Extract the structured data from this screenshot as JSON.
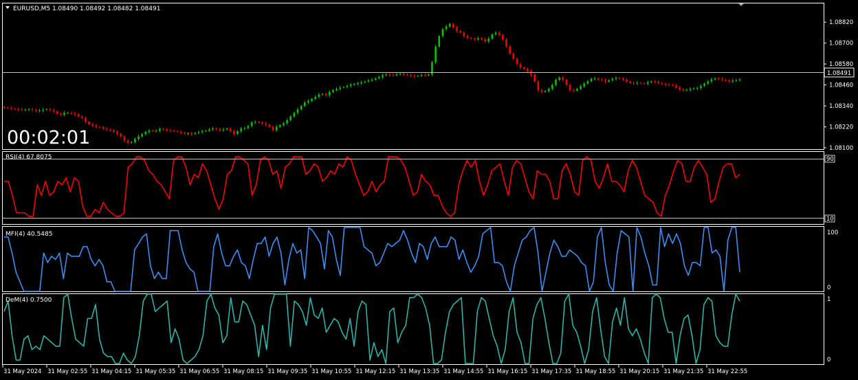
{
  "main": {
    "header": "EURUSD,M5  1.08490 1.08492 1.08482 1.08491",
    "timer": "00:02:01",
    "price_label": "1.08491",
    "price_ticks": [
      "1.08820",
      "1.08700",
      "1.08580",
      "1.08460",
      "1.08340",
      "1.08220",
      "1.08100"
    ]
  },
  "rsi": {
    "label": "RSI(4) 67.8075",
    "levels": [
      "90",
      "10"
    ]
  },
  "mfi": {
    "label": "MFI(4) 40.5485",
    "levels": [
      "100",
      "0"
    ]
  },
  "dem": {
    "label": "DeM(4) 0.7500",
    "levels": [
      "1",
      "0"
    ]
  },
  "time_axis": [
    "31 May 2024",
    "31 May 02:55",
    "31 May 04:15",
    "31 May 05:35",
    "31 May 06:55",
    "31 May 08:15",
    "31 May 09:35",
    "31 May 10:55",
    "31 May 12:15",
    "31 May 13:35",
    "31 May 14:55",
    "31 May 16:15",
    "31 May 17:35",
    "31 May 18:55",
    "31 May 20:15",
    "31 May 21:35",
    "31 May 22:55"
  ],
  "colors": {
    "bull": "#00c800",
    "bear": "#ff0000",
    "rsi": "#ff0000",
    "mfi": "#3a8ef6",
    "dem": "#2ab5a8",
    "grid": "#ffffff",
    "bg": "#000000"
  },
  "chart_data": [
    {
      "type": "candlestick",
      "symbol": "EURUSD",
      "timeframe": "M5",
      "ylim": [
        1.081,
        1.0888
      ],
      "close_series": [
        1.0833,
        1.08328,
        1.08325,
        1.08322,
        1.0832,
        1.08318,
        1.08318,
        1.0832,
        1.08317,
        1.0831,
        1.08315,
        1.08318,
        1.0832,
        1.08315,
        1.08308,
        1.08295,
        1.0829,
        1.083,
        1.083,
        1.08298,
        1.08292,
        1.0828,
        1.0827,
        1.0825,
        1.08235,
        1.08228,
        1.0822,
        1.08218,
        1.0821,
        1.08205,
        1.082,
        1.08192,
        1.0818,
        1.08165,
        1.0814,
        1.08128,
        1.08132,
        1.0815,
        1.08165,
        1.08178,
        1.0819,
        1.08198,
        1.08195,
        1.08198,
        1.08208,
        1.08205,
        1.082,
        1.08198,
        1.08195,
        1.08192,
        1.08185,
        1.0818,
        1.08182,
        1.0818,
        1.08185,
        1.0819,
        1.08195,
        1.08198,
        1.08205,
        1.0821,
        1.08208,
        1.082,
        1.08205,
        1.0821,
        1.08195,
        1.0818,
        1.08195,
        1.0821,
        1.08212,
        1.08225,
        1.08245,
        1.08248,
        1.08245,
        1.08238,
        1.08232,
        1.0822,
        1.082,
        1.0822,
        1.0823,
        1.0824,
        1.08258,
        1.0828,
        1.083,
        1.0832,
        1.0834,
        1.0836,
        1.08368,
        1.0838,
        1.08392,
        1.08405,
        1.08408,
        1.084,
        1.0842,
        1.0843,
        1.08438,
        1.08445,
        1.08448,
        1.08455,
        1.08462,
        1.08465,
        1.0847,
        1.08475,
        1.0848,
        1.08487,
        1.0849,
        1.08498,
        1.08505,
        1.08515,
        1.0852,
        1.08518,
        1.08515,
        1.08522,
        1.08525,
        1.0852,
        1.08518,
        1.08512,
        1.0851,
        1.08512,
        1.08518,
        1.08515,
        1.0852,
        1.0859,
        1.0868,
        1.0874,
        1.0878,
        1.08795,
        1.0881,
        1.0879,
        1.0877,
        1.0876,
        1.0874,
        1.0873,
        1.08725,
        1.08722,
        1.08728,
        1.08722,
        1.0871,
        1.08725,
        1.0875,
        1.0876,
        1.08748,
        1.0872,
        1.0868,
        1.0864,
        1.0861,
        1.0858,
        1.0856,
        1.08552,
        1.0854,
        1.0852,
        1.0848,
        1.0843,
        1.0842,
        1.08425,
        1.08438,
        1.0846,
        1.0849,
        1.08502,
        1.0849,
        1.0846,
        1.0843,
        1.08428,
        1.08438,
        1.08452,
        1.08468,
        1.08482,
        1.08495,
        1.08498,
        1.08492,
        1.08488,
        1.0848,
        1.08487,
        1.08495,
        1.085,
        1.08497,
        1.0849,
        1.0848,
        1.08472,
        1.08468,
        1.08472,
        1.0847,
        1.08468,
        1.08475,
        1.0848,
        1.08478,
        1.08472,
        1.08466,
        1.08462,
        1.0846,
        1.08458,
        1.08445,
        1.08435,
        1.0843,
        1.08432,
        1.08438,
        1.0844,
        1.08442,
        1.08455,
        1.08468,
        1.0848,
        1.08492,
        1.08498,
        1.08494,
        1.0849,
        1.08485,
        1.0848,
        1.08485,
        1.08488,
        1.08491
      ]
    },
    {
      "type": "line",
      "name": "RSI(4) 67.8075",
      "ylim": [
        0,
        100
      ],
      "values": [
        60,
        60,
        40,
        15,
        15,
        15,
        10,
        10,
        55,
        40,
        60,
        40,
        45,
        60,
        55,
        65,
        45,
        65,
        60,
        25,
        10,
        10,
        20,
        15,
        30,
        20,
        15,
        10,
        10,
        15,
        80,
        85,
        95,
        95,
        90,
        75,
        70,
        60,
        55,
        45,
        35,
        90,
        95,
        95,
        80,
        55,
        70,
        65,
        85,
        75,
        55,
        35,
        20,
        35,
        70,
        75,
        95,
        95,
        90,
        85,
        40,
        55,
        90,
        95,
        90,
        70,
        75,
        50,
        80,
        85,
        95,
        95,
        95,
        70,
        75,
        85,
        80,
        60,
        65,
        75,
        70,
        85,
        80,
        95,
        90,
        70,
        55,
        40,
        45,
        60,
        45,
        55,
        60,
        95,
        95,
        95,
        90,
        80,
        60,
        40,
        45,
        70,
        60,
        55,
        40,
        40,
        25,
        15,
        10,
        15,
        55,
        75,
        90,
        80,
        90,
        60,
        40,
        55,
        75,
        80,
        85,
        60,
        40,
        80,
        90,
        85,
        65,
        45,
        35,
        75,
        70,
        70,
        60,
        35,
        35,
        75,
        85,
        70,
        45,
        40,
        90,
        95,
        90,
        60,
        50,
        65,
        85,
        60,
        60,
        55,
        45,
        75,
        90,
        80,
        60,
        40,
        35,
        30,
        15,
        10,
        40,
        55,
        75,
        90,
        85,
        60,
        60,
        80,
        90,
        80,
        70,
        30,
        35,
        60,
        80,
        85,
        85,
        65,
        70
      ]
    },
    {
      "type": "line",
      "name": "MFI(4) 40.5485",
      "ylim": [
        0,
        100
      ],
      "values": [
        85,
        85,
        60,
        30,
        15,
        0,
        0,
        0,
        0,
        0,
        60,
        45,
        55,
        50,
        60,
        20,
        60,
        55,
        55,
        55,
        70,
        70,
        50,
        40,
        50,
        40,
        15,
        15,
        0,
        0,
        0,
        0,
        0,
        65,
        75,
        85,
        90,
        40,
        20,
        30,
        20,
        20,
        95,
        95,
        95,
        65,
        45,
        35,
        30,
        0,
        0,
        0,
        0,
        70,
        90,
        60,
        40,
        40,
        55,
        65,
        45,
        40,
        20,
        50,
        75,
        75,
        85,
        55,
        75,
        85,
        60,
        10,
        50,
        75,
        60,
        65,
        20,
        100,
        95,
        85,
        75,
        35,
        95,
        85,
        50,
        25,
        100,
        100,
        100,
        100,
        100,
        70,
        65,
        60,
        40,
        45,
        60,
        75,
        70,
        75,
        80,
        95,
        80,
        60,
        45,
        75,
        70,
        50,
        75,
        85,
        70,
        70,
        70,
        85,
        80,
        50,
        65,
        45,
        30,
        40,
        55,
        90,
        95,
        100,
        45,
        45,
        40,
        15,
        0,
        40,
        60,
        80,
        85,
        95,
        100,
        60,
        0,
        30,
        60,
        80,
        70,
        55,
        55,
        65,
        60,
        55,
        45,
        40,
        0,
        15,
        85,
        100,
        45,
        10,
        0,
        60,
        95,
        90,
        85,
        0,
        100,
        85,
        60,
        40,
        10,
        10,
        100,
        70,
        90,
        75,
        90,
        75,
        40,
        25,
        45,
        45,
        40,
        100,
        100,
        60,
        65,
        55,
        0,
        80,
        100,
        100,
        30
      ]
    },
    {
      "type": "line",
      "name": "DeM(4) 0.7500",
      "ylim": [
        0,
        1
      ],
      "values": [
        0.75,
        0.9,
        0.4,
        0.05,
        0.05,
        0.35,
        0.4,
        0.2,
        0.25,
        0.2,
        0.4,
        0.35,
        0.3,
        0.25,
        0.25,
        0.95,
        1.0,
        0.65,
        0.35,
        0.3,
        0.25,
        0.65,
        0.65,
        0.85,
        0.35,
        0.15,
        0.1,
        0.1,
        0.0,
        0.0,
        0.15,
        0.05,
        0.0,
        0.1,
        0.4,
        0.9,
        1.0,
        1.0,
        0.75,
        0.8,
        0.85,
        0.9,
        0.3,
        0.5,
        0.35,
        0.05,
        0.0,
        0.05,
        0.1,
        0.2,
        0.4,
        0.9,
        1.0,
        0.8,
        0.7,
        0.3,
        0.4,
        0.95,
        0.6,
        0.6,
        0.9,
        0.85,
        0.7,
        0.55,
        0.1,
        0.55,
        0.2,
        0.8,
        1.0,
        1.0,
        1.0,
        1.0,
        0.25,
        0.9,
        0.85,
        0.75,
        0.55,
        0.95,
        0.7,
        0.65,
        0.8,
        0.45,
        0.55,
        0.65,
        0.6,
        0.45,
        0.35,
        0.65,
        0.25,
        0.75,
        0.9,
        0.85,
        0.05,
        0.3,
        0.1,
        0.2,
        0.0,
        0.75,
        0.8,
        0.3,
        0.45,
        0.55,
        0.95,
        0.95,
        1.0,
        0.95,
        0.8,
        0.55,
        0.0,
        0.0,
        0.05,
        0.45,
        0.75,
        0.85,
        0.9,
        0.95,
        0.0,
        0.0,
        0.0,
        0.75,
        0.95,
        0.9,
        0.65,
        0.4,
        0.25,
        0.0,
        0.2,
        0.75,
        0.95,
        0.45,
        0.3,
        0.0,
        0.0,
        0.65,
        0.85,
        0.95,
        0.65,
        0.3,
        0.0,
        0.0,
        0.15,
        0.9,
        1.0,
        0.55,
        0.45,
        0.25,
        0.0,
        0.2,
        0.75,
        0.95,
        0.5,
        0.1,
        0.0,
        0.6,
        0.8,
        0.55,
        0.95,
        0.5,
        0.4,
        0.5,
        0.35,
        0.15,
        0.0,
        0.95,
        1.0,
        0.95,
        0.65,
        0.45,
        0.45,
        0.0,
        0.4,
        0.65,
        0.7,
        0.4,
        0.0,
        0.2,
        0.85,
        0.95,
        0.9,
        0.4,
        0.3,
        0.25,
        0.25,
        0.7,
        1.0,
        0.9
      ]
    }
  ]
}
